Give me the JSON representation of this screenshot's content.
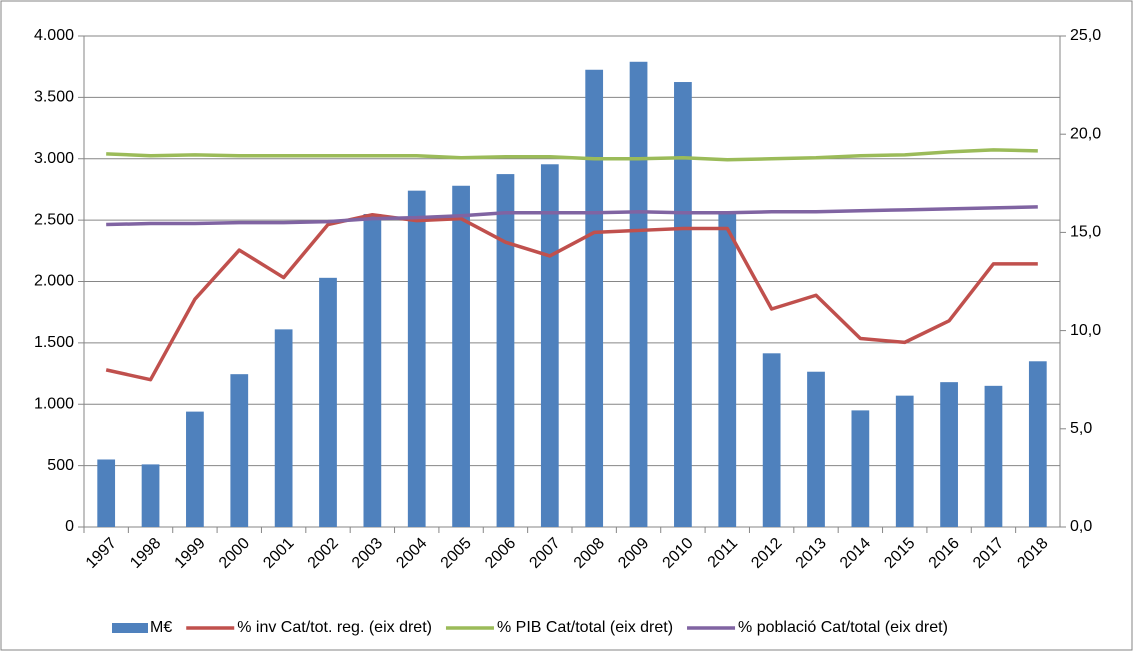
{
  "chart_data": {
    "type": "bar",
    "categories": [
      "1997",
      "1998",
      "1999",
      "2000",
      "2001",
      "2002",
      "2003",
      "2004",
      "2005",
      "2006",
      "2007",
      "2008",
      "2009",
      "2010",
      "2011",
      "2012",
      "2013",
      "2014",
      "2015",
      "2016",
      "2017",
      "2018"
    ],
    "series": [
      {
        "name": "M€",
        "type": "bar",
        "color": "#4f81bd",
        "values": [
          550,
          510,
          940,
          1245,
          1610,
          2030,
          2550,
          2740,
          2780,
          2875,
          2955,
          3725,
          3790,
          3625,
          2560,
          1415,
          1265,
          950,
          1070,
          1180,
          1150,
          1350
        ]
      },
      {
        "name": "% inv Cat/tot. reg. (eix dret)",
        "type": "line",
        "axis": "y2",
        "color": "#c0504d",
        "values": [
          8.0,
          7.5,
          11.6,
          14.1,
          12.7,
          15.4,
          15.9,
          15.6,
          15.7,
          14.5,
          13.8,
          15.0,
          15.1,
          15.2,
          15.2,
          11.1,
          11.8,
          9.6,
          9.4,
          10.5,
          13.4,
          13.4
        ]
      },
      {
        "name": "% PIB Cat/total (eix dret)",
        "type": "line",
        "axis": "y2",
        "color": "#9bbb59",
        "values": [
          19.0,
          18.9,
          18.95,
          18.9,
          18.9,
          18.9,
          18.9,
          18.9,
          18.8,
          18.85,
          18.85,
          18.75,
          18.75,
          18.8,
          18.7,
          18.75,
          18.8,
          18.9,
          18.95,
          19.1,
          19.2,
          19.15
        ]
      },
      {
        "name": "% població Cat/total (eix dret)",
        "type": "line",
        "axis": "y2",
        "color": "#8064a2",
        "values": [
          15.4,
          15.45,
          15.45,
          15.5,
          15.5,
          15.55,
          15.7,
          15.75,
          15.85,
          16.0,
          16.0,
          16.0,
          16.05,
          16.0,
          16.0,
          16.05,
          16.05,
          16.1,
          16.15,
          16.2,
          16.25,
          16.3
        ]
      }
    ],
    "ylim": [
      0,
      4000
    ],
    "yticks": [
      0,
      {
        "value": 500,
        "label": "500"
      },
      {
        "value": 1000,
        "label": "1.000"
      },
      {
        "value": 1500,
        "label": "1.500"
      },
      {
        "value": 2000,
        "label": "2.000"
      },
      {
        "value": 2500,
        "label": "2.500"
      },
      {
        "value": 3000,
        "label": "3.000"
      },
      {
        "value": 3500,
        "label": "3.500"
      },
      {
        "value": 4000,
        "label": "4.000"
      }
    ],
    "y2lim": [
      0,
      25
    ],
    "y2ticks": [
      {
        "value": 0,
        "label": "0,0"
      },
      {
        "value": 5,
        "label": "5,0"
      },
      {
        "value": 10,
        "label": "10,0"
      },
      {
        "value": 15,
        "label": "15,0"
      },
      {
        "value": 20,
        "label": "20,0"
      },
      {
        "value": 25,
        "label": "25,0"
      }
    ],
    "grid": true,
    "legend": "bottom"
  }
}
